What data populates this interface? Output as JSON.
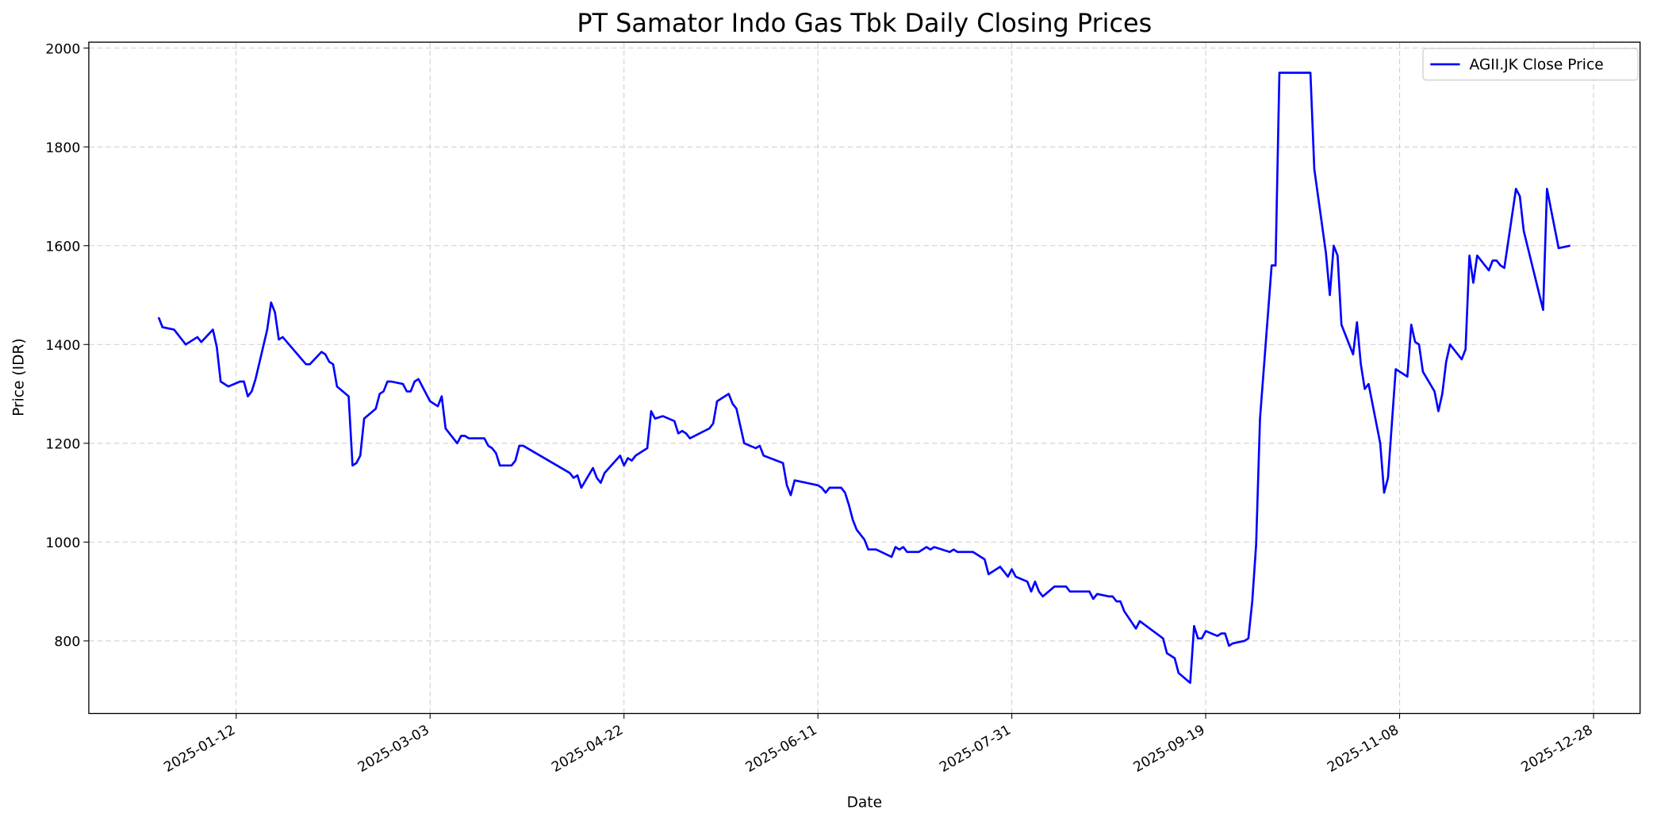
{
  "chart_data": {
    "type": "line",
    "title": "PT Samator Indo Gas Tbk Daily Closing Prices",
    "xlabel": "Date",
    "ylabel": "Price (IDR)",
    "xlim": [
      "2024-12-05",
      "2026-01-09"
    ],
    "ylim": [
      653,
      2012
    ],
    "grid": true,
    "legend_position": "top-right",
    "x_ticks": [
      "2025-01-12",
      "2025-03-03",
      "2025-04-22",
      "2025-06-11",
      "2025-07-31",
      "2025-09-19",
      "2025-11-08",
      "2025-12-28"
    ],
    "y_ticks": [
      800,
      1000,
      1200,
      1400,
      1600,
      1800,
      2000
    ],
    "series": [
      {
        "name": "AGII.JK Close Price",
        "color": "#0000ff",
        "points": [
          [
            "2024-12-23",
            1455
          ],
          [
            "2024-12-24",
            1435
          ],
          [
            "2024-12-27",
            1430
          ],
          [
            "2024-12-30",
            1400
          ],
          [
            "2025-01-02",
            1415
          ],
          [
            "2025-01-03",
            1405
          ],
          [
            "2025-01-06",
            1430
          ],
          [
            "2025-01-07",
            1395
          ],
          [
            "2025-01-08",
            1325
          ],
          [
            "2025-01-10",
            1315
          ],
          [
            "2025-01-13",
            1325
          ],
          [
            "2025-01-14",
            1325
          ],
          [
            "2025-01-15",
            1295
          ],
          [
            "2025-01-16",
            1305
          ],
          [
            "2025-01-17",
            1330
          ],
          [
            "2025-01-20",
            1430
          ],
          [
            "2025-01-21",
            1485
          ],
          [
            "2025-01-22",
            1465
          ],
          [
            "2025-01-23",
            1410
          ],
          [
            "2025-01-24",
            1415
          ],
          [
            "2025-01-30",
            1360
          ],
          [
            "2025-01-31",
            1360
          ],
          [
            "2025-02-03",
            1385
          ],
          [
            "2025-02-04",
            1380
          ],
          [
            "2025-02-05",
            1365
          ],
          [
            "2025-02-06",
            1360
          ],
          [
            "2025-02-07",
            1315
          ],
          [
            "2025-02-10",
            1295
          ],
          [
            "2025-02-11",
            1155
          ],
          [
            "2025-02-12",
            1160
          ],
          [
            "2025-02-13",
            1175
          ],
          [
            "2025-02-14",
            1250
          ],
          [
            "2025-02-17",
            1270
          ],
          [
            "2025-02-18",
            1300
          ],
          [
            "2025-02-19",
            1305
          ],
          [
            "2025-02-20",
            1325
          ],
          [
            "2025-02-21",
            1325
          ],
          [
            "2025-02-24",
            1320
          ],
          [
            "2025-02-25",
            1305
          ],
          [
            "2025-02-26",
            1305
          ],
          [
            "2025-02-27",
            1325
          ],
          [
            "2025-02-28",
            1330
          ],
          [
            "2025-03-03",
            1285
          ],
          [
            "2025-03-05",
            1275
          ],
          [
            "2025-03-06",
            1295
          ],
          [
            "2025-03-07",
            1230
          ],
          [
            "2025-03-10",
            1200
          ],
          [
            "2025-03-11",
            1215
          ],
          [
            "2025-03-12",
            1215
          ],
          [
            "2025-03-13",
            1210
          ],
          [
            "2025-03-17",
            1210
          ],
          [
            "2025-03-18",
            1195
          ],
          [
            "2025-03-19",
            1190
          ],
          [
            "2025-03-20",
            1180
          ],
          [
            "2025-03-21",
            1155
          ],
          [
            "2025-03-24",
            1155
          ],
          [
            "2025-03-25",
            1165
          ],
          [
            "2025-03-26",
            1195
          ],
          [
            "2025-03-27",
            1195
          ],
          [
            "2025-04-08",
            1140
          ],
          [
            "2025-04-09",
            1130
          ],
          [
            "2025-04-10",
            1135
          ],
          [
            "2025-04-11",
            1110
          ],
          [
            "2025-04-14",
            1150
          ],
          [
            "2025-04-15",
            1130
          ],
          [
            "2025-04-16",
            1120
          ],
          [
            "2025-04-17",
            1140
          ],
          [
            "2025-04-21",
            1175
          ],
          [
            "2025-04-22",
            1155
          ],
          [
            "2025-04-23",
            1170
          ],
          [
            "2025-04-24",
            1165
          ],
          [
            "2025-04-25",
            1175
          ],
          [
            "2025-04-28",
            1190
          ],
          [
            "2025-04-29",
            1265
          ],
          [
            "2025-04-30",
            1250
          ],
          [
            "2025-05-02",
            1255
          ],
          [
            "2025-05-05",
            1245
          ],
          [
            "2025-05-06",
            1220
          ],
          [
            "2025-05-07",
            1225
          ],
          [
            "2025-05-08",
            1220
          ],
          [
            "2025-05-09",
            1210
          ],
          [
            "2025-05-14",
            1230
          ],
          [
            "2025-05-15",
            1240
          ],
          [
            "2025-05-16",
            1285
          ],
          [
            "2025-05-19",
            1300
          ],
          [
            "2025-05-20",
            1280
          ],
          [
            "2025-05-21",
            1270
          ],
          [
            "2025-05-23",
            1200
          ],
          [
            "2025-05-26",
            1190
          ],
          [
            "2025-05-27",
            1195
          ],
          [
            "2025-05-28",
            1175
          ],
          [
            "2025-06-02",
            1160
          ],
          [
            "2025-06-03",
            1115
          ],
          [
            "2025-06-04",
            1095
          ],
          [
            "2025-06-05",
            1125
          ],
          [
            "2025-06-11",
            1115
          ],
          [
            "2025-06-12",
            1110
          ],
          [
            "2025-06-13",
            1100
          ],
          [
            "2025-06-14",
            1110
          ],
          [
            "2025-06-17",
            1110
          ],
          [
            "2025-06-18",
            1100
          ],
          [
            "2025-06-19",
            1075
          ],
          [
            "2025-06-20",
            1045
          ],
          [
            "2025-06-21",
            1025
          ],
          [
            "2025-06-23",
            1005
          ],
          [
            "2025-06-24",
            985
          ],
          [
            "2025-06-26",
            985
          ],
          [
            "2025-06-30",
            970
          ],
          [
            "2025-07-01",
            990
          ],
          [
            "2025-07-02",
            985
          ],
          [
            "2025-07-03",
            990
          ],
          [
            "2025-07-04",
            980
          ],
          [
            "2025-07-07",
            980
          ],
          [
            "2025-07-08",
            985
          ],
          [
            "2025-07-09",
            990
          ],
          [
            "2025-07-10",
            985
          ],
          [
            "2025-07-11",
            990
          ],
          [
            "2025-07-15",
            980
          ],
          [
            "2025-07-16",
            985
          ],
          [
            "2025-07-17",
            980
          ],
          [
            "2025-07-21",
            980
          ],
          [
            "2025-07-24",
            965
          ],
          [
            "2025-07-25",
            935
          ],
          [
            "2025-07-28",
            950
          ],
          [
            "2025-07-30",
            930
          ],
          [
            "2025-07-31",
            945
          ],
          [
            "2025-08-01",
            930
          ],
          [
            "2025-08-04",
            920
          ],
          [
            "2025-08-05",
            900
          ],
          [
            "2025-08-06",
            920
          ],
          [
            "2025-08-07",
            900
          ],
          [
            "2025-08-08",
            890
          ],
          [
            "2025-08-11",
            910
          ],
          [
            "2025-08-14",
            910
          ],
          [
            "2025-08-15",
            900
          ],
          [
            "2025-08-20",
            900
          ],
          [
            "2025-08-21",
            885
          ],
          [
            "2025-08-22",
            895
          ],
          [
            "2025-08-25",
            890
          ],
          [
            "2025-08-26",
            890
          ],
          [
            "2025-08-27",
            880
          ],
          [
            "2025-08-28",
            880
          ],
          [
            "2025-08-29",
            860
          ],
          [
            "2025-09-01",
            825
          ],
          [
            "2025-09-02",
            840
          ],
          [
            "2025-09-08",
            805
          ],
          [
            "2025-09-09",
            775
          ],
          [
            "2025-09-11",
            765
          ],
          [
            "2025-09-12",
            735
          ],
          [
            "2025-09-15",
            715
          ],
          [
            "2025-09-16",
            830
          ],
          [
            "2025-09-17",
            805
          ],
          [
            "2025-09-18",
            805
          ],
          [
            "2025-09-19",
            820
          ],
          [
            "2025-09-22",
            810
          ],
          [
            "2025-09-23",
            815
          ],
          [
            "2025-09-24",
            815
          ],
          [
            "2025-09-25",
            790
          ],
          [
            "2025-09-26",
            795
          ],
          [
            "2025-09-29",
            800
          ],
          [
            "2025-09-30",
            805
          ],
          [
            "2025-10-01",
            880
          ],
          [
            "2025-10-02",
            995
          ],
          [
            "2025-10-03",
            1250
          ],
          [
            "2025-10-06",
            1560
          ],
          [
            "2025-10-07",
            1560
          ],
          [
            "2025-10-08",
            1950
          ],
          [
            "2025-10-16",
            1950
          ],
          [
            "2025-10-17",
            1755
          ],
          [
            "2025-10-20",
            1585
          ],
          [
            "2025-10-21",
            1500
          ],
          [
            "2025-10-22",
            1600
          ],
          [
            "2025-10-23",
            1580
          ],
          [
            "2025-10-24",
            1440
          ],
          [
            "2025-10-27",
            1380
          ],
          [
            "2025-10-28",
            1445
          ],
          [
            "2025-10-29",
            1360
          ],
          [
            "2025-10-30",
            1310
          ],
          [
            "2025-10-31",
            1320
          ],
          [
            "2025-11-03",
            1200
          ],
          [
            "2025-11-04",
            1100
          ],
          [
            "2025-11-05",
            1130
          ],
          [
            "2025-11-07",
            1350
          ],
          [
            "2025-11-10",
            1335
          ],
          [
            "2025-11-11",
            1440
          ],
          [
            "2025-11-12",
            1405
          ],
          [
            "2025-11-13",
            1400
          ],
          [
            "2025-11-14",
            1345
          ],
          [
            "2025-11-17",
            1305
          ],
          [
            "2025-11-18",
            1265
          ],
          [
            "2025-11-19",
            1300
          ],
          [
            "2025-11-20",
            1365
          ],
          [
            "2025-11-21",
            1400
          ],
          [
            "2025-11-24",
            1370
          ],
          [
            "2025-11-25",
            1390
          ],
          [
            "2025-11-26",
            1580
          ],
          [
            "2025-11-27",
            1525
          ],
          [
            "2025-11-28",
            1580
          ],
          [
            "2025-12-01",
            1550
          ],
          [
            "2025-12-02",
            1570
          ],
          [
            "2025-12-03",
            1570
          ],
          [
            "2025-12-04",
            1560
          ],
          [
            "2025-12-05",
            1555
          ],
          [
            "2025-12-08",
            1715
          ],
          [
            "2025-12-09",
            1700
          ],
          [
            "2025-12-10",
            1630
          ],
          [
            "2025-12-15",
            1470
          ],
          [
            "2025-12-16",
            1715
          ],
          [
            "2025-12-19",
            1595
          ],
          [
            "2025-12-22",
            1600
          ]
        ]
      }
    ]
  }
}
